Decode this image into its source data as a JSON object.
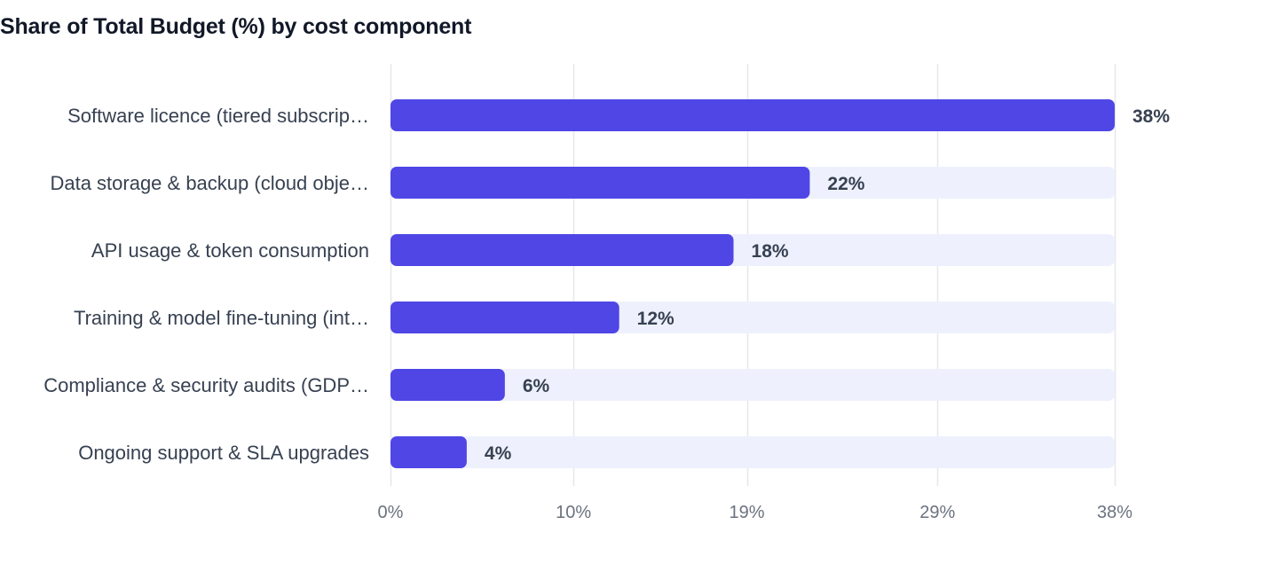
{
  "chart_data": {
    "type": "bar",
    "orientation": "horizontal",
    "title": "Share of Total Budget (%) by cost component",
    "xlabel": "",
    "ylabel": "",
    "categories": [
      "Software licence (tiered subscrip…",
      "Data storage & backup (cloud obje…",
      "API usage & token consumption",
      "Training & model fine-tuning (int…",
      "Compliance & security audits (GDP…",
      "Ongoing support & SLA upgrades"
    ],
    "values": [
      38,
      22,
      18,
      12,
      6,
      4
    ],
    "value_labels": [
      "38%",
      "22%",
      "18%",
      "12%",
      "6%",
      "4%"
    ],
    "xlim": [
      0,
      38
    ],
    "x_ticks": [
      0,
      9.6,
      18.7,
      28.7,
      38
    ],
    "x_tick_labels": [
      "0%",
      "10%",
      "19%",
      "29%",
      "38%"
    ],
    "grid": true,
    "legend": "none",
    "colors": {
      "bar": "#4f46e5",
      "track": "#eef1fd",
      "grid": "#e5e7eb",
      "title": "#111827",
      "label": "#374151",
      "tick": "#6b7280"
    }
  }
}
